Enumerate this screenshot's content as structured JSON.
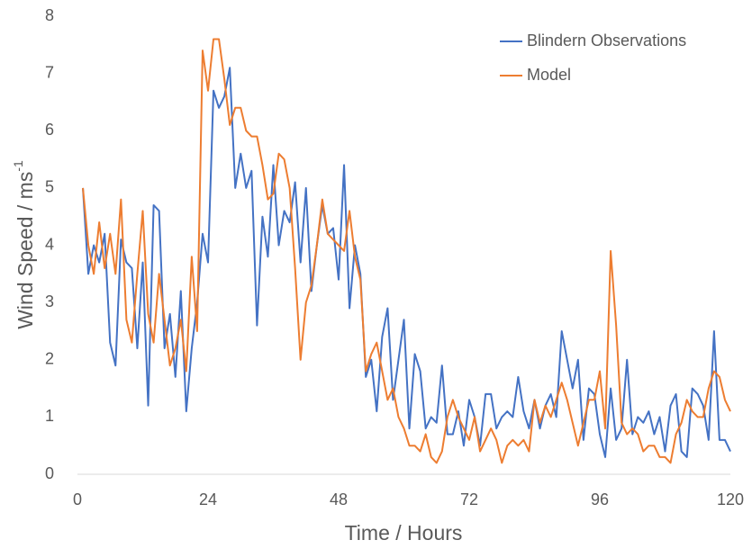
{
  "chart_data": {
    "type": "line",
    "x_label": "Time / Hours",
    "y_label": "Wind Speed / ms",
    "y_label_sup": "-1",
    "x": [
      1,
      2,
      3,
      4,
      5,
      6,
      7,
      8,
      9,
      10,
      11,
      12,
      13,
      14,
      15,
      16,
      17,
      18,
      19,
      20,
      21,
      22,
      23,
      24,
      25,
      26,
      27,
      28,
      29,
      30,
      31,
      32,
      33,
      34,
      35,
      36,
      37,
      38,
      39,
      40,
      41,
      42,
      43,
      44,
      45,
      46,
      47,
      48,
      49,
      50,
      51,
      52,
      53,
      54,
      55,
      56,
      57,
      58,
      59,
      60,
      61,
      62,
      63,
      64,
      65,
      66,
      67,
      68,
      69,
      70,
      71,
      72,
      73,
      74,
      75,
      76,
      77,
      78,
      79,
      80,
      81,
      82,
      83,
      84,
      85,
      86,
      87,
      88,
      89,
      90,
      91,
      92,
      93,
      94,
      95,
      96,
      97,
      98,
      99,
      100,
      101,
      102,
      103,
      104,
      105,
      106,
      107,
      108,
      109,
      110,
      111,
      112,
      113,
      114,
      115,
      116,
      117,
      118,
      119,
      120
    ],
    "series": [
      {
        "name": "Blindern Observations",
        "color": "#4472c4",
        "values": [
          5.0,
          3.5,
          4.0,
          3.7,
          4.2,
          2.3,
          1.9,
          4.1,
          3.7,
          3.6,
          2.2,
          3.7,
          1.2,
          4.7,
          4.6,
          2.2,
          2.8,
          1.7,
          3.2,
          1.1,
          2.2,
          3.0,
          4.2,
          3.7,
          6.7,
          6.4,
          6.6,
          7.1,
          5.0,
          5.6,
          5.0,
          5.3,
          2.6,
          4.5,
          3.8,
          5.4,
          4.0,
          4.6,
          4.4,
          5.1,
          3.7,
          5.0,
          3.2,
          4.0,
          4.7,
          4.2,
          4.3,
          3.4,
          5.4,
          2.9,
          4.0,
          3.5,
          1.7,
          2.0,
          1.1,
          2.4,
          2.9,
          1.3,
          2.0,
          2.7,
          0.8,
          2.1,
          1.8,
          0.8,
          1.0,
          0.9,
          1.9,
          0.7,
          0.7,
          1.1,
          0.5,
          1.3,
          1.0,
          0.5,
          1.4,
          1.4,
          0.8,
          1.0,
          1.1,
          1.0,
          1.7,
          1.1,
          0.8,
          1.3,
          0.8,
          1.2,
          1.4,
          1.0,
          2.5,
          2.0,
          1.5,
          2.0,
          0.6,
          1.5,
          1.4,
          0.7,
          0.3,
          1.5,
          0.6,
          0.8,
          2.0,
          0.7,
          1.0,
          0.9,
          1.1,
          0.7,
          1.0,
          0.4,
          1.2,
          1.4,
          0.4,
          0.3,
          1.5,
          1.4,
          1.2,
          0.6,
          2.5,
          0.6,
          0.6,
          0.4
        ]
      },
      {
        "name": "Model",
        "color": "#ed7d31",
        "values": [
          5.0,
          4.0,
          3.5,
          4.4,
          3.6,
          4.2,
          3.5,
          4.8,
          2.7,
          2.3,
          3.5,
          4.6,
          2.8,
          2.3,
          3.5,
          2.7,
          1.9,
          2.2,
          2.7,
          1.8,
          3.8,
          2.5,
          7.4,
          6.7,
          7.6,
          7.6,
          6.9,
          6.1,
          6.4,
          6.4,
          6.0,
          5.9,
          5.9,
          5.4,
          4.8,
          4.9,
          5.6,
          5.5,
          5.0,
          3.6,
          2.0,
          3.0,
          3.3,
          4.0,
          4.8,
          4.2,
          4.1,
          4.0,
          3.9,
          4.6,
          3.8,
          3.4,
          1.8,
          2.1,
          2.3,
          1.8,
          1.3,
          1.5,
          1.0,
          0.8,
          0.5,
          0.5,
          0.4,
          0.7,
          0.3,
          0.2,
          0.4,
          1.0,
          1.3,
          1.0,
          0.8,
          0.6,
          1.0,
          0.4,
          0.6,
          0.8,
          0.6,
          0.2,
          0.5,
          0.6,
          0.5,
          0.6,
          0.4,
          1.3,
          0.9,
          1.2,
          1.0,
          1.3,
          1.6,
          1.3,
          0.9,
          0.5,
          0.9,
          1.3,
          1.3,
          1.8,
          0.8,
          3.9,
          2.6,
          0.9,
          0.7,
          0.8,
          0.7,
          0.4,
          0.5,
          0.5,
          0.3,
          0.3,
          0.2,
          0.7,
          0.9,
          1.3,
          1.1,
          1.0,
          1.0,
          1.5,
          1.8,
          1.7,
          1.3,
          1.1
        ]
      }
    ],
    "xlim": [
      0,
      120
    ],
    "xticks": [
      0,
      24,
      48,
      72,
      96,
      120
    ],
    "ylim": [
      0,
      8
    ],
    "yticks": [
      0,
      1,
      2,
      3,
      4,
      5,
      6,
      7,
      8
    ],
    "legend": "top-right"
  }
}
